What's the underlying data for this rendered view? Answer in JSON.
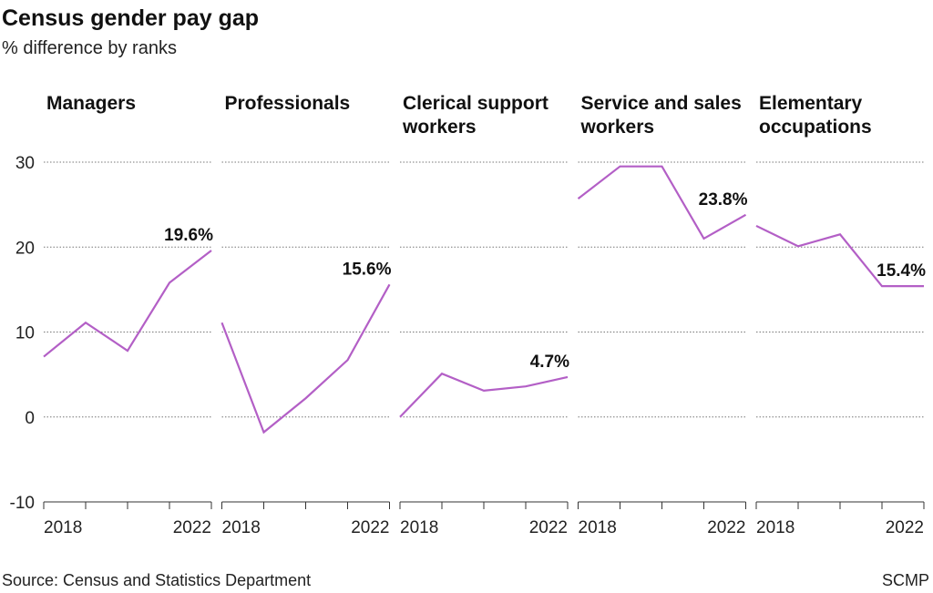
{
  "chart_data": {
    "type": "line",
    "title": "Census gender pay gap",
    "subtitle": "% difference by ranks",
    "x": [
      2018,
      2019,
      2020,
      2021,
      2022
    ],
    "xlim": [
      2018,
      2022
    ],
    "xticks": [
      2018,
      2022
    ],
    "ylim": [
      -10,
      30
    ],
    "yticks": [
      -10,
      0,
      10,
      20,
      30
    ],
    "grid": true,
    "series": [
      {
        "name": "Managers",
        "color": "#b35fc6",
        "values": [
          7.1,
          11.1,
          7.8,
          15.8,
          19.6
        ],
        "value_labels": [
          null,
          null,
          null,
          null,
          "19.6%"
        ]
      },
      {
        "name": "Professionals",
        "color": "#b35fc6",
        "values": [
          11.1,
          -1.8,
          2.2,
          6.7,
          15.6
        ],
        "value_labels": [
          null,
          null,
          null,
          null,
          "15.6%"
        ]
      },
      {
        "name": "Clerical support workers",
        "color": "#b35fc6",
        "values": [
          0,
          5.1,
          3.1,
          3.6,
          4.7
        ],
        "value_labels": [
          null,
          null,
          null,
          null,
          "4.7%"
        ]
      },
      {
        "name": "Service and sales workers",
        "color": "#b35fc6",
        "values": [
          25.7,
          29.5,
          29.5,
          21.0,
          23.8
        ],
        "value_labels": [
          null,
          null,
          null,
          null,
          "23.8%"
        ]
      },
      {
        "name": "Elementary occupations",
        "color": "#b35fc6",
        "values": [
          22.5,
          20.1,
          21.5,
          15.4,
          15.4
        ],
        "value_labels": [
          null,
          null,
          null,
          null,
          "15.4%"
        ]
      }
    ],
    "source": "Source: Census and Statistics Department",
    "credit": "SCMP"
  }
}
